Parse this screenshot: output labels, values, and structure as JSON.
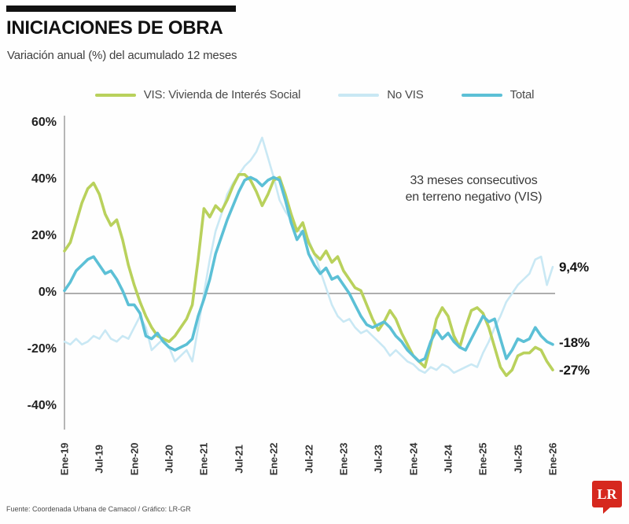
{
  "header": {
    "title": "INICIACIONES DE OBRA",
    "subtitle": "Variación anual (%) del acumulado 12 meses"
  },
  "legend": [
    {
      "key": "vis",
      "label": "VIS: Vivienda de Interés Social",
      "color": "#b9d15c"
    },
    {
      "key": "novis",
      "label": "No VIS",
      "color": "#c9e8f4"
    },
    {
      "key": "total",
      "label": "Total",
      "color": "#5cc0d6"
    }
  ],
  "annotation": {
    "line1": "33 meses consecutivos",
    "line2": "en terreno negativo (VIS)"
  },
  "end_labels": {
    "novis": "9,4%",
    "total": "-18%",
    "vis": "-27%"
  },
  "footer": {
    "source": "Fuente: Coordenada Urbana de Camacol / Gráfico: LR-GR"
  },
  "logo": {
    "text": "LR",
    "color": "#d6281e"
  },
  "chart_data": {
    "type": "line",
    "title": "Iniciaciones de obra — variación anual (%) del acumulado 12 meses",
    "x_start": "Ene-19",
    "x_end": "Ene-26",
    "x_interval": "monthly",
    "x_tick_labels": [
      "Ene-19",
      "Jul-19",
      "Ene-20",
      "Jul-20",
      "Ene-21",
      "Jul-21",
      "Ene-22",
      "Jul-22",
      "Ene-23",
      "Jul-23",
      "Ene-24",
      "Jul-24",
      "Ene-25",
      "Jul-25",
      "Ene-26"
    ],
    "y_ticks": [
      {
        "label": "60%",
        "value": 60
      },
      {
        "label": "40%",
        "value": 40
      },
      {
        "label": "20%",
        "value": 20
      },
      {
        "label": "0%",
        "value": 0
      },
      {
        "label": "-20%",
        "value": -20
      },
      {
        "label": "-40%",
        "value": -40
      }
    ],
    "ylim": [
      -40,
      60
    ],
    "grid": "zero-line-only",
    "legend_position": "top",
    "series": [
      {
        "key": "novis",
        "name": "No VIS",
        "color": "#c9e8f4",
        "width": 2.6,
        "values": [
          -17,
          -18,
          -16,
          -18,
          -17,
          -15,
          -16,
          -13,
          -16,
          -17,
          -15,
          -16,
          -12,
          -8,
          -12,
          -20,
          -18,
          -16,
          -19,
          -24,
          -22,
          -20,
          -24,
          -12,
          0,
          12,
          22,
          28,
          35,
          39,
          42,
          45,
          47,
          50,
          55,
          48,
          41,
          33,
          29,
          26,
          23,
          21,
          19,
          14,
          8,
          2,
          -4,
          -8,
          -10,
          -9,
          -12,
          -14,
          -13,
          -15,
          -17,
          -19,
          -22,
          -20,
          -22,
          -24,
          -25,
          -27,
          -28,
          -26,
          -27,
          -25,
          -26,
          -28,
          -27,
          -26,
          -25,
          -26,
          -21,
          -17,
          -12,
          -8,
          -3,
          0,
          3,
          5,
          7,
          12,
          13,
          3,
          9.4
        ]
      },
      {
        "key": "vis",
        "name": "VIS: Vivienda de Interés Social",
        "color": "#b9d15c",
        "width": 3.6,
        "values": [
          15,
          18,
          25,
          32,
          37,
          39,
          35,
          28,
          24,
          26,
          19,
          10,
          3,
          -3,
          -8,
          -12,
          -15,
          -16,
          -17,
          -15,
          -12,
          -9,
          -4,
          12,
          30,
          27,
          31,
          29,
          33,
          38,
          42,
          42,
          40,
          36,
          31,
          35,
          40,
          41,
          35,
          28,
          22,
          25,
          18,
          14,
          12,
          15,
          11,
          13,
          8,
          5,
          2,
          1,
          -4,
          -9,
          -13,
          -10,
          -6,
          -9,
          -14,
          -18,
          -22,
          -24,
          -26,
          -18,
          -9,
          -5,
          -8,
          -15,
          -19,
          -12,
          -6,
          -5,
          -7,
          -12,
          -19,
          -26,
          -29,
          -27,
          -22,
          -21,
          -21,
          -19,
          -20,
          -24,
          -27
        ]
      },
      {
        "key": "total",
        "name": "Total",
        "color": "#5cc0d6",
        "width": 3.6,
        "values": [
          1,
          4,
          8,
          10,
          12,
          13,
          10,
          7,
          8,
          5,
          1,
          -4,
          -4,
          -7,
          -15,
          -16,
          -14,
          -17,
          -19,
          -20,
          -19,
          -18,
          -16,
          -8,
          -2,
          5,
          14,
          20,
          26,
          31,
          36,
          40,
          41,
          40,
          38,
          40,
          41,
          40,
          33,
          25,
          19,
          22,
          14,
          10,
          7,
          9,
          5,
          6,
          3,
          0,
          -4,
          -8,
          -11,
          -12,
          -11,
          -10,
          -12,
          -15,
          -17,
          -20,
          -22,
          -24,
          -23,
          -17,
          -13,
          -16,
          -14,
          -17,
          -19,
          -20,
          -16,
          -12,
          -8,
          -10,
          -9,
          -16,
          -23,
          -20,
          -16,
          -17,
          -16,
          -12,
          -15,
          -17,
          -18
        ]
      }
    ]
  }
}
